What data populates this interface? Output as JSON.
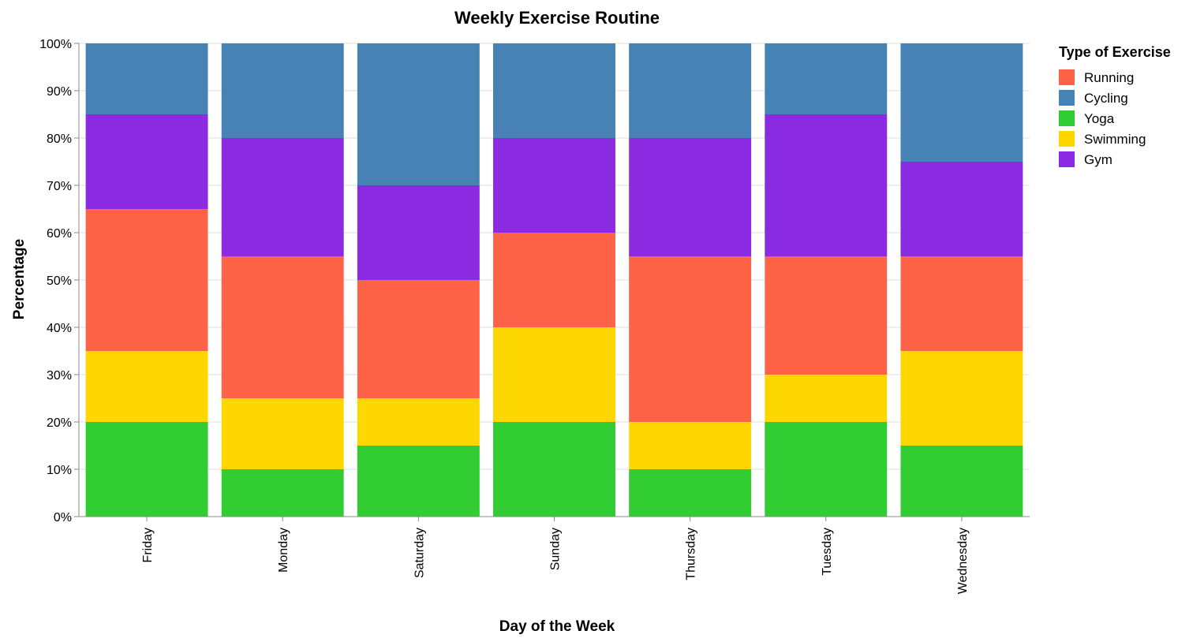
{
  "chart_data": {
    "type": "bar",
    "stacked": true,
    "title": "Weekly Exercise Routine",
    "xlabel": "Day of the Week",
    "ylabel": "Percentage",
    "ylim": [
      0,
      100
    ],
    "y_ticks": [
      0,
      10,
      20,
      30,
      40,
      50,
      60,
      70,
      80,
      90,
      100
    ],
    "y_tick_suffix": "%",
    "grid": true,
    "legend_title": "Type of Exercise",
    "legend_position": "right",
    "categories": [
      "Friday",
      "Monday",
      "Saturday",
      "Sunday",
      "Thursday",
      "Tuesday",
      "Wednesday"
    ],
    "stack_order": [
      "Yoga",
      "Swimming",
      "Running",
      "Gym",
      "Cycling"
    ],
    "series": [
      {
        "name": "Running",
        "color": "#ff6347",
        "values": [
          30,
          30,
          25,
          20,
          35,
          25,
          20
        ]
      },
      {
        "name": "Cycling",
        "color": "#4682b4",
        "values": [
          15,
          20,
          30,
          20,
          20,
          15,
          25
        ]
      },
      {
        "name": "Yoga",
        "color": "#32cd32",
        "values": [
          20,
          10,
          15,
          20,
          10,
          20,
          15
        ]
      },
      {
        "name": "Swimming",
        "color": "#ffd700",
        "values": [
          15,
          15,
          10,
          20,
          10,
          10,
          20
        ]
      },
      {
        "name": "Gym",
        "color": "#8a2be2",
        "values": [
          20,
          25,
          20,
          20,
          25,
          30,
          20
        ]
      }
    ]
  }
}
